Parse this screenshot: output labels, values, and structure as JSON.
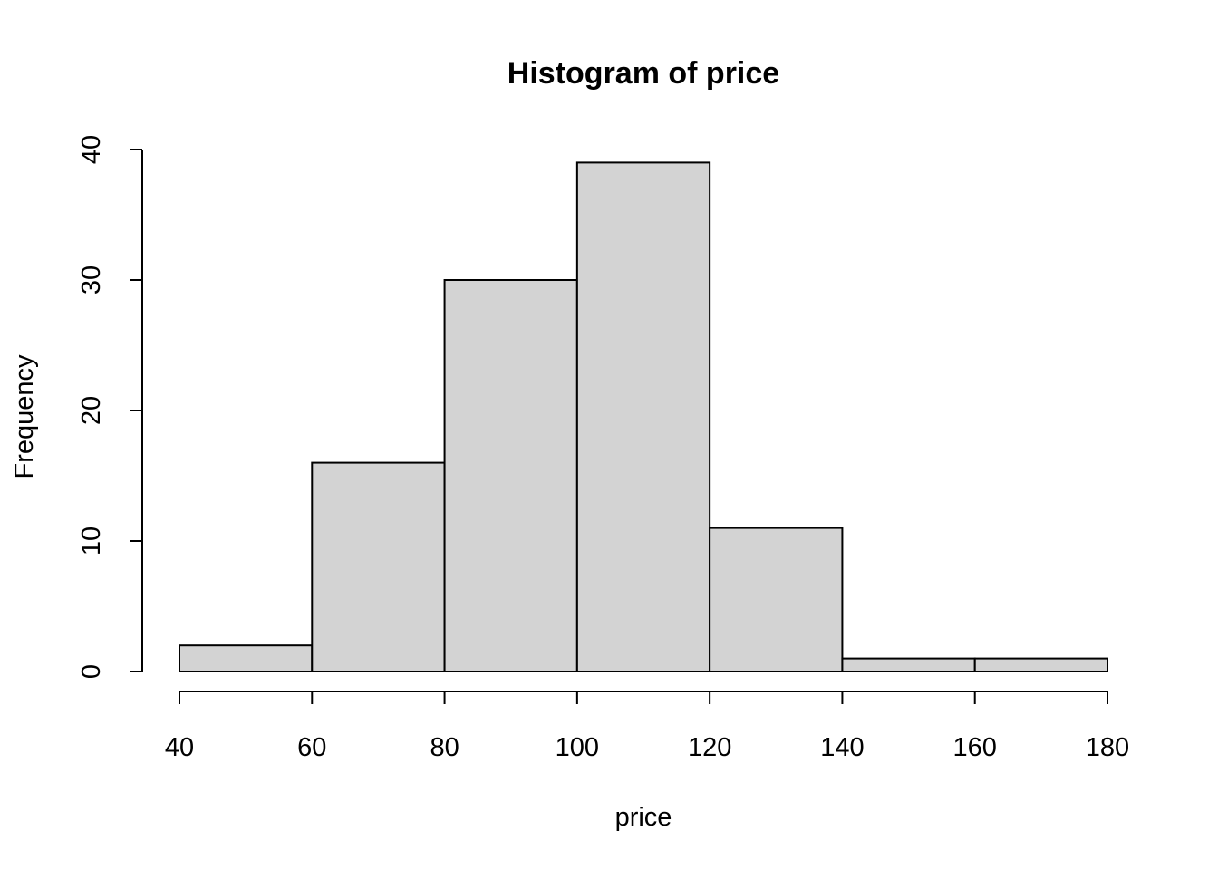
{
  "chart_data": {
    "type": "bar",
    "title": "Histogram of price",
    "xlabel": "price",
    "ylabel": "Frequency",
    "bins": [
      {
        "from": 40,
        "to": 60,
        "count": 2
      },
      {
        "from": 60,
        "to": 80,
        "count": 16
      },
      {
        "from": 80,
        "to": 100,
        "count": 30
      },
      {
        "from": 100,
        "to": 120,
        "count": 39
      },
      {
        "from": 120,
        "to": 140,
        "count": 11
      },
      {
        "from": 140,
        "to": 160,
        "count": 1
      },
      {
        "from": 160,
        "to": 180,
        "count": 1
      }
    ],
    "xlim": [
      40,
      180
    ],
    "ylim": [
      0,
      40
    ],
    "xticks": [
      40,
      60,
      80,
      100,
      120,
      140,
      160,
      180
    ],
    "yticks": [
      0,
      10,
      20,
      30,
      40
    ],
    "grid": false,
    "colors": {
      "bar_fill": "#d3d3d3",
      "bar_stroke": "#000000"
    }
  }
}
